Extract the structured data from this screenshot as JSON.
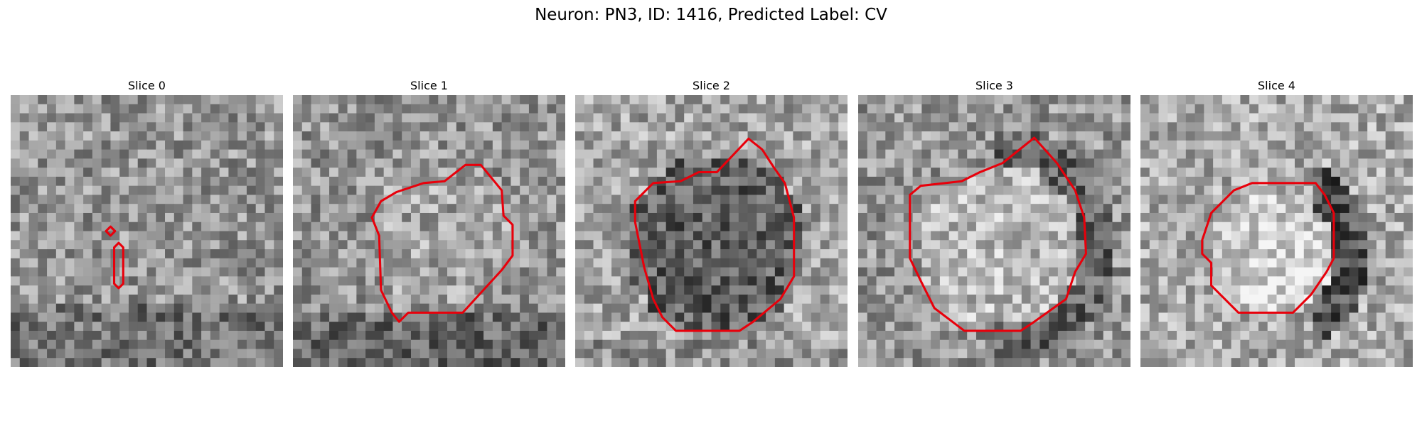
{
  "title": "Neuron: PN3, ID: 1416, Predicted Label: CV",
  "panels": [
    {
      "title": "Slice 0"
    },
    {
      "title": "Slice 1"
    },
    {
      "title": "Slice 2"
    },
    {
      "title": "Slice 3"
    },
    {
      "title": "Slice 4"
    }
  ]
}
